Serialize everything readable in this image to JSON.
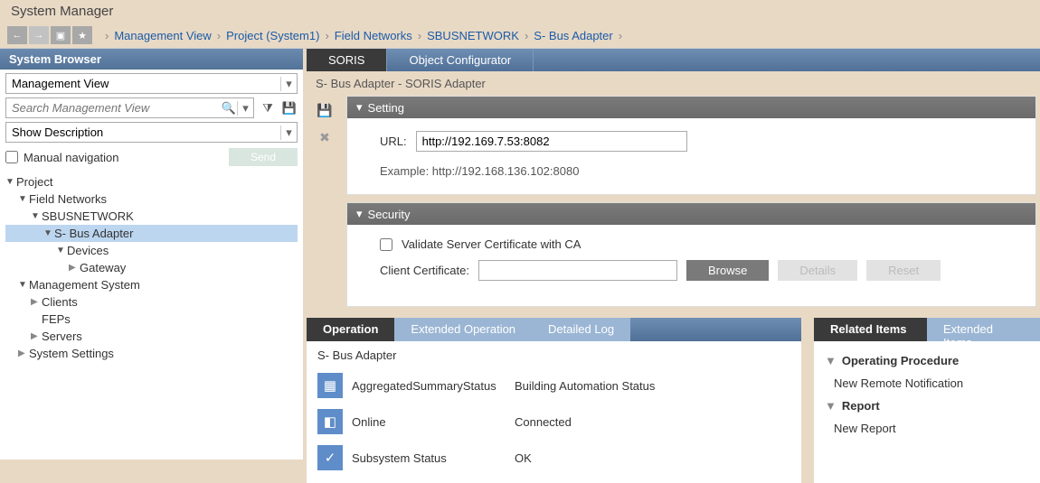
{
  "app_title": "System Manager",
  "breadcrumb": [
    "Management View",
    "Project (System1)",
    "Field Networks",
    "SBUSNETWORK",
    "S- Bus Adapter"
  ],
  "left": {
    "header": "System Browser",
    "view_combo": "Management View",
    "search_placeholder": "Search Management View",
    "desc_combo": "Show Description",
    "manual_nav": "Manual navigation",
    "send": "Send",
    "tree": [
      {
        "label": "Project",
        "lvl": 0,
        "exp": true
      },
      {
        "label": "Field Networks",
        "lvl": 1,
        "exp": true
      },
      {
        "label": "SBUSNETWORK",
        "lvl": 2,
        "exp": true
      },
      {
        "label": "S- Bus Adapter",
        "lvl": 3,
        "exp": true,
        "sel": true
      },
      {
        "label": "Devices",
        "lvl": 4,
        "exp": true
      },
      {
        "label": "Gateway",
        "lvl": 5,
        "leaf": true
      },
      {
        "label": "Management System",
        "lvl": 1,
        "exp": true
      },
      {
        "label": "Clients",
        "lvl": 2,
        "leaf": true
      },
      {
        "label": "FEPs",
        "lvl": 2,
        "none": true
      },
      {
        "label": "Servers",
        "lvl": 2,
        "leaf": true
      },
      {
        "label": "System Settings",
        "lvl": 1,
        "leaf": true
      }
    ]
  },
  "tabs": {
    "active": "SORIS",
    "other": "Object Configurator"
  },
  "subheader": "S- Bus Adapter    -   SORIS Adapter",
  "setting": {
    "title": "Setting",
    "url_label": "URL:",
    "url_value": "http://192.169.7.53:8082",
    "example": "Example: http://192.168.136.102:8080"
  },
  "security": {
    "title": "Security",
    "validate": "Validate Server Certificate with CA",
    "client_cert": "Client Certificate:",
    "browse": "Browse",
    "details": "Details",
    "reset": "Reset"
  },
  "operation": {
    "tabs": [
      "Operation",
      "Extended Operation",
      "Detailed Log"
    ],
    "title": "S- Bus Adapter",
    "rows": [
      {
        "label": "AggregatedSummaryStatus",
        "value": "Building Automation Status",
        "ic": "▦"
      },
      {
        "label": "Online",
        "value": "Connected",
        "ic": "◧"
      },
      {
        "label": "Subsystem Status",
        "value": "OK",
        "ic": "✓"
      }
    ]
  },
  "related": {
    "tabs": [
      "Related Items",
      "Extended Items"
    ],
    "groups": [
      {
        "h": "Operating Procedure",
        "item": "New Remote Notification"
      },
      {
        "h": "Report",
        "item": "New Report"
      }
    ]
  }
}
